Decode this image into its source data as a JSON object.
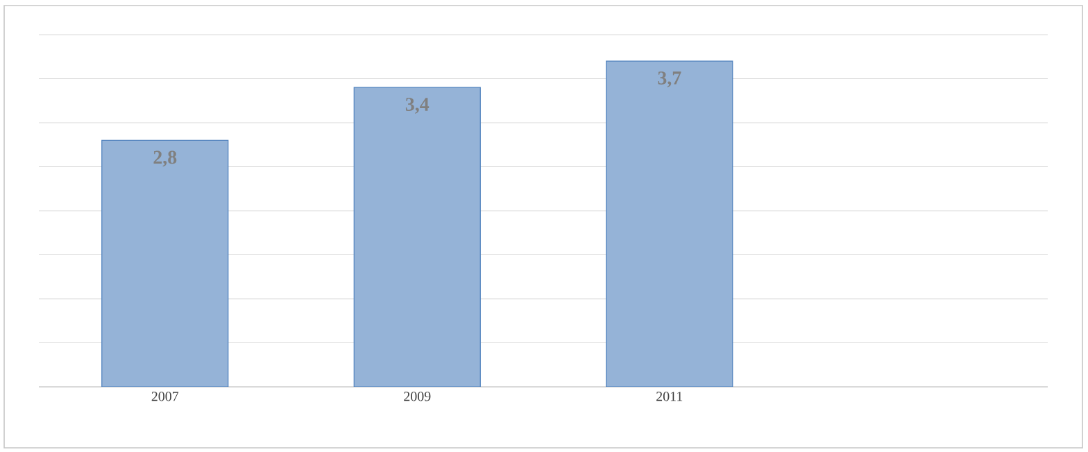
{
  "chart_data": {
    "type": "bar",
    "categories": [
      "2007",
      "2009",
      "2011",
      null
    ],
    "values": [
      2.8,
      3.4,
      3.7,
      null
    ],
    "value_labels": [
      "2,8",
      "3,4",
      "3,7",
      null
    ],
    "color": "#95b3d7",
    "ylim": [
      0,
      4
    ],
    "yticks": [
      {
        "value": 0,
        "label": null
      },
      {
        "value": 0.5,
        "label": null
      },
      {
        "value": 1,
        "label": null
      },
      {
        "value": 1.5,
        "label": null
      },
      {
        "value": 2,
        "label": null
      },
      {
        "value": 2.5,
        "label": null
      },
      {
        "value": 3,
        "label": null
      },
      {
        "value": 3.5,
        "label": null
      },
      {
        "value": 4,
        "label": null
      }
    ],
    "tick_labels": "x",
    "grid": "y"
  }
}
